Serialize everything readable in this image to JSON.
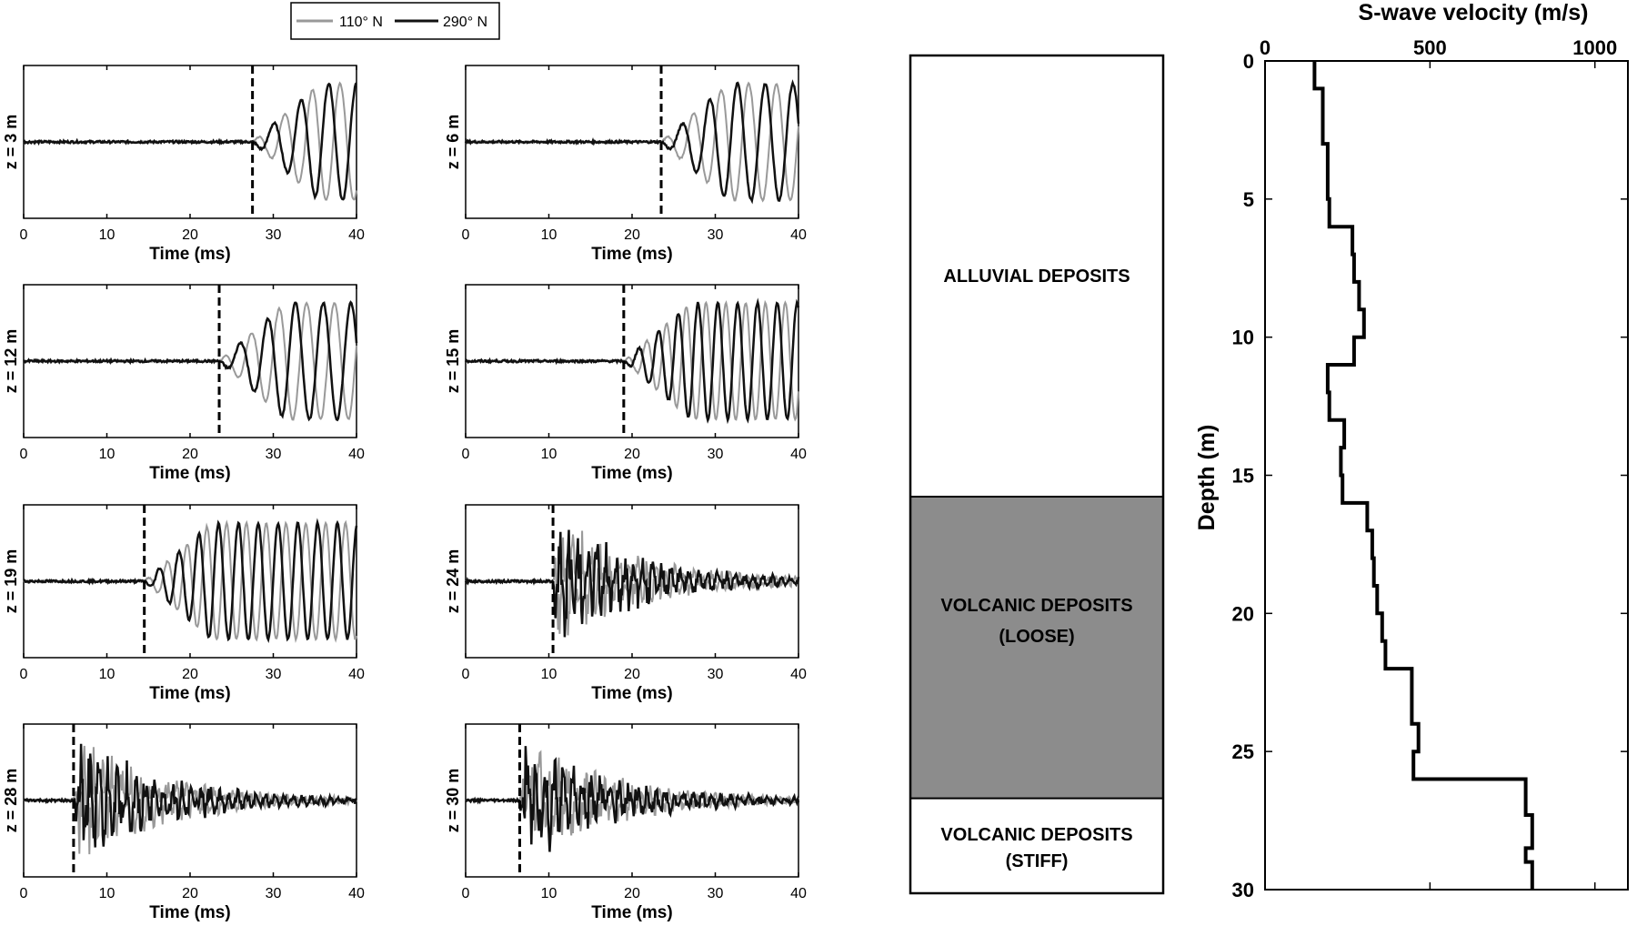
{
  "legend": {
    "entries": [
      {
        "label": "110° N",
        "color": "#999999"
      },
      {
        "label": "290° N",
        "color": "#111111"
      }
    ]
  },
  "seismograms": {
    "xlabel": "Time (ms)",
    "xticks": [
      "0",
      "10",
      "20",
      "30",
      "40"
    ],
    "panels": [
      {
        "ylabel": "z = 3 m",
        "depth": 3,
        "arrival_ms": 27.5
      },
      {
        "ylabel": "z = 6 m",
        "depth": 6,
        "arrival_ms": 23.5
      },
      {
        "ylabel": "z = 12 m",
        "depth": 12,
        "arrival_ms": 23.5
      },
      {
        "ylabel": "z = 15 m",
        "depth": 15,
        "arrival_ms": 19.0
      },
      {
        "ylabel": "z = 19 m",
        "depth": 19,
        "arrival_ms": 14.5
      },
      {
        "ylabel": "z = 24 m",
        "depth": 24,
        "arrival_ms": 10.5
      },
      {
        "ylabel": "z = 28 m",
        "depth": 28,
        "arrival_ms": 6.0
      },
      {
        "ylabel": "z = 30 m",
        "depth": 30,
        "arrival_ms": 6.5
      }
    ]
  },
  "stratigraphy": {
    "layers": [
      {
        "line1": "ALLUVIAL DEPOSITS",
        "line2": "",
        "top_m": 0,
        "bottom_m": 15.8,
        "fill": "#ffffff"
      },
      {
        "line1": "VOLCANIC DEPOSITS",
        "line2": "(LOOSE)",
        "top_m": 15.8,
        "bottom_m": 26.6,
        "fill": "#8c8c8c"
      },
      {
        "line1": "VOLCANIC DEPOSITS",
        "line2": "(STIFF)",
        "top_m": 26.6,
        "bottom_m": 30,
        "fill": "#ffffff"
      }
    ]
  },
  "chart_data": [
    {
      "type": "line",
      "title": "",
      "xlabel": "Time (ms)",
      "ylabel": "",
      "xlim": [
        0,
        40
      ],
      "series": [
        {
          "name": "110° N"
        },
        {
          "name": "290° N"
        }
      ],
      "note_panels": "8 seismogram panels; amplitudes are unlabeled; dashed vertical line marks S-wave arrival",
      "panels": [
        {
          "label": "z = 3 m",
          "arrival_ms": 27.5
        },
        {
          "label": "z = 6 m",
          "arrival_ms": 23.5
        },
        {
          "label": "z = 12 m",
          "arrival_ms": 23.5
        },
        {
          "label": "z = 15 m",
          "arrival_ms": 19.0
        },
        {
          "label": "z = 19 m",
          "arrival_ms": 14.5
        },
        {
          "label": "z = 24 m",
          "arrival_ms": 10.5
        },
        {
          "label": "z = 28 m",
          "arrival_ms": 6.0
        },
        {
          "label": "z = 30 m",
          "arrival_ms": 6.5
        }
      ]
    },
    {
      "type": "line",
      "title": "S-wave velocity (m/s)",
      "xlabel": "S-wave velocity (m/s)",
      "ylabel": "Depth (m)",
      "xlim": [
        0,
        1100
      ],
      "ylim": [
        30,
        0
      ],
      "xticks": [
        "0",
        "500",
        "1000"
      ],
      "yticks": [
        "0",
        "5",
        "10",
        "15",
        "20",
        "25",
        "30"
      ],
      "profile": [
        {
          "depth_top": 0,
          "depth_bottom": 1,
          "vs": 150
        },
        {
          "depth_top": 1,
          "depth_bottom": 3,
          "vs": 175
        },
        {
          "depth_top": 3,
          "depth_bottom": 5,
          "vs": 190
        },
        {
          "depth_top": 5,
          "depth_bottom": 6,
          "vs": 195
        },
        {
          "depth_top": 6,
          "depth_bottom": 7,
          "vs": 265
        },
        {
          "depth_top": 7,
          "depth_bottom": 8,
          "vs": 270
        },
        {
          "depth_top": 8,
          "depth_bottom": 9,
          "vs": 285
        },
        {
          "depth_top": 9,
          "depth_bottom": 10,
          "vs": 300
        },
        {
          "depth_top": 10,
          "depth_bottom": 11,
          "vs": 270
        },
        {
          "depth_top": 11,
          "depth_bottom": 12,
          "vs": 190
        },
        {
          "depth_top": 12,
          "depth_bottom": 13,
          "vs": 195
        },
        {
          "depth_top": 13,
          "depth_bottom": 14,
          "vs": 240
        },
        {
          "depth_top": 14,
          "depth_bottom": 15,
          "vs": 230
        },
        {
          "depth_top": 15,
          "depth_bottom": 16,
          "vs": 235
        },
        {
          "depth_top": 16,
          "depth_bottom": 17,
          "vs": 310
        },
        {
          "depth_top": 17,
          "depth_bottom": 18,
          "vs": 325
        },
        {
          "depth_top": 18,
          "depth_bottom": 19,
          "vs": 330
        },
        {
          "depth_top": 19,
          "depth_bottom": 20,
          "vs": 340
        },
        {
          "depth_top": 20,
          "depth_bottom": 21,
          "vs": 355
        },
        {
          "depth_top": 21,
          "depth_bottom": 22,
          "vs": 365
        },
        {
          "depth_top": 22,
          "depth_bottom": 24,
          "vs": 445
        },
        {
          "depth_top": 24,
          "depth_bottom": 25,
          "vs": 465
        },
        {
          "depth_top": 25,
          "depth_bottom": 26,
          "vs": 450
        },
        {
          "depth_top": 26,
          "depth_bottom": 27.3,
          "vs": 790
        },
        {
          "depth_top": 27.3,
          "depth_bottom": 28.5,
          "vs": 810
        },
        {
          "depth_top": 28.5,
          "depth_bottom": 29,
          "vs": 790
        },
        {
          "depth_top": 29,
          "depth_bottom": 30,
          "vs": 810
        }
      ]
    }
  ]
}
